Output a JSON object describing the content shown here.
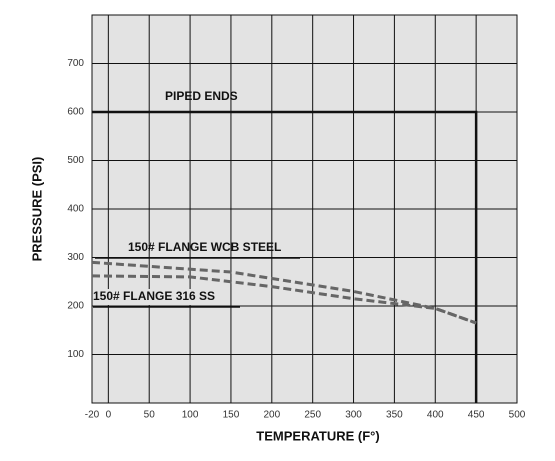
{
  "chart_data": {
    "type": "line",
    "xlabel": "TEMPERATURE (F°)",
    "ylabel": "PRESSURE (PSI)",
    "xlim": [
      -20,
      500
    ],
    "xticks": [
      -20,
      0,
      50,
      100,
      150,
      200,
      250,
      300,
      350,
      400,
      450,
      500
    ],
    "ylim": [
      0,
      800
    ],
    "yticks": [
      100,
      200,
      300,
      400,
      500,
      600,
      700
    ],
    "grid": true,
    "series": [
      {
        "name": "PIPED ENDS",
        "color": "#111111",
        "dashed": false,
        "x": [
          -20,
          450,
          450
        ],
        "values": [
          600,
          600,
          0
        ]
      },
      {
        "name": "150# FLANGE WCB STEEL",
        "color": "#666666",
        "dashed": true,
        "x": [
          -20,
          150,
          300,
          400,
          450
        ],
        "values": [
          290,
          270,
          230,
          195,
          165
        ]
      },
      {
        "name": "150# FLANGE 316 SS",
        "color": "#666666",
        "dashed": true,
        "x": [
          -20,
          100,
          200,
          300,
          400,
          450
        ],
        "values": [
          262,
          260,
          240,
          215,
          195,
          165
        ]
      }
    ]
  }
}
